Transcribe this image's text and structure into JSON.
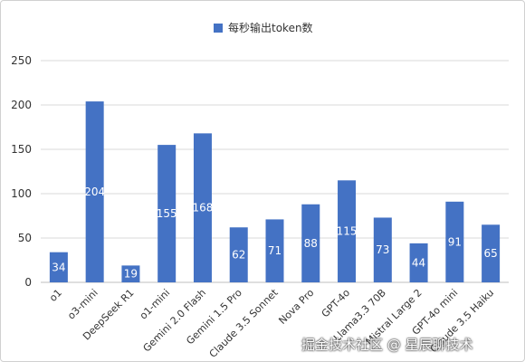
{
  "chart_data": {
    "type": "bar",
    "legend": "每秒输出token数",
    "legend_position": "top",
    "color": "#4472c4",
    "categories": [
      "o1",
      "o3-mini",
      "DeepSeek R1",
      "o1-mini",
      "Gemini 2.0 Flash",
      "Gemini 1.5 Pro",
      "Claude 3.5 Sonnet",
      "Nova Pro",
      "GPT-4o",
      "Llama3.3 70B",
      "Mistral Large 2",
      "GPT-4o mini",
      "Claude 3.5 Haiku"
    ],
    "values": [
      34,
      204,
      19,
      155,
      168,
      62,
      71,
      88,
      115,
      73,
      44,
      91,
      65
    ],
    "data_labels": [
      "34",
      "204",
      "19",
      "155",
      "168",
      "62",
      "71",
      "88",
      "115",
      "73",
      "44",
      "91",
      "65"
    ],
    "ylim": [
      0,
      250
    ],
    "yticks": [
      "0",
      "50",
      "100",
      "150",
      "200",
      "250"
    ],
    "grid": true
  },
  "watermark": "掘金技术社区 @ 星辰聊技术"
}
